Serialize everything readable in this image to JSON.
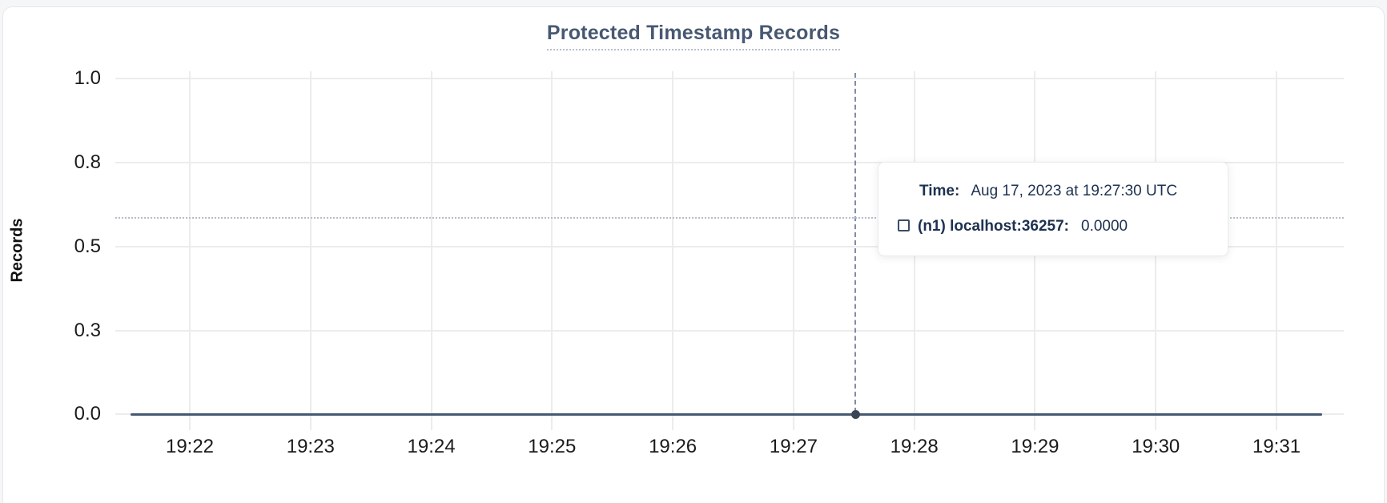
{
  "chart": {
    "title": "Protected Timestamp Records",
    "y_axis_label": "Records"
  },
  "tooltip": {
    "time_label": "Time:",
    "time_value": "Aug 17, 2023 at 19:27:30 UTC",
    "series_label": "(n1) localhost:36257:",
    "series_value": "0.0000",
    "checkbox_icon": "unchecked-square-icon"
  },
  "colors": {
    "title_text": "#475872",
    "series_line": "#475872",
    "hover_dot": "#394455",
    "gridline": "#ececec",
    "crosshair_dashed": "#7d8fa6",
    "crosshair_dotted": "#b3bdc9",
    "tooltip_text": "#1d3150",
    "tick_text": "#1b1b1b"
  },
  "chart_data": {
    "type": "line",
    "title": "Protected Timestamp Records",
    "xlabel": "",
    "ylabel": "Records",
    "x_tick_labels": [
      "19:22",
      "19:23",
      "19:24",
      "19:25",
      "19:26",
      "19:27",
      "19:28",
      "19:29",
      "19:30",
      "19:31"
    ],
    "y_tick_labels": [
      "1.0",
      "0.8",
      "0.5",
      "0.3",
      "0.0"
    ],
    "ylim": [
      0,
      1
    ],
    "grid": true,
    "legend_position": "none",
    "series": [
      {
        "name": "(n1) localhost:36257",
        "color": "#475872",
        "values": [
          0,
          0,
          0,
          0,
          0,
          0,
          0,
          0,
          0,
          0
        ]
      }
    ],
    "hover_point": {
      "time": "Aug 17, 2023 at 19:27:30 UTC",
      "x_label": "19:27:30",
      "value": 0.0
    }
  }
}
